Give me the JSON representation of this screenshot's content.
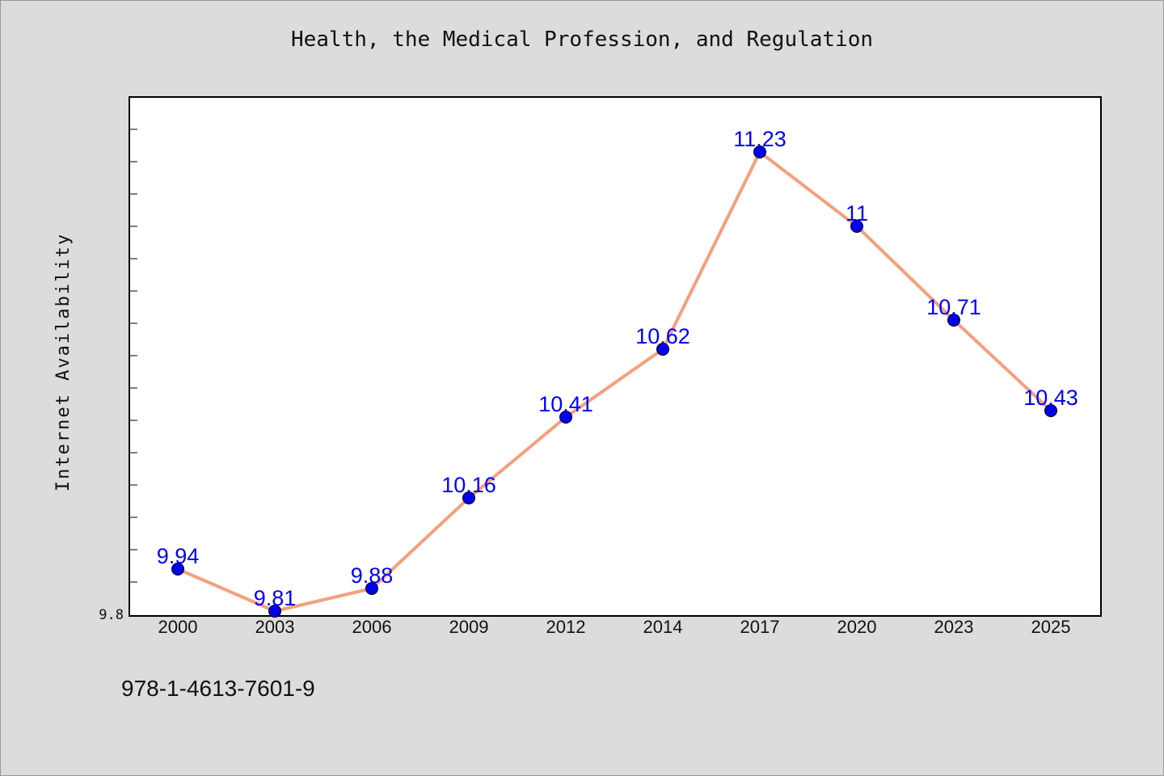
{
  "title": "Health, the Medical Profession, and Regulation",
  "footnote": "978-1-4613-7601-9",
  "colors": {
    "background": "#dcdcdc",
    "plot_background": "#ffffff",
    "line": "#f4a07c",
    "marker": "#0000ee",
    "label": "#0000ff"
  },
  "chart_data": {
    "type": "line",
    "title": "Health, the Medical Profession, and Regulation",
    "xlabel": "",
    "ylabel": "Internet Availability",
    "categories": [
      "2000",
      "2003",
      "2006",
      "2009",
      "2012",
      "2014",
      "2017",
      "2020",
      "2023",
      "2025"
    ],
    "series": [
      {
        "values": [
          9.94,
          9.81,
          9.88,
          10.16,
          10.41,
          10.62,
          11.23,
          11,
          10.71,
          10.43
        ]
      }
    ],
    "data_labels": [
      "9.94",
      "9.81",
      "9.88",
      "10.16",
      "10.41",
      "10.62",
      "11.23",
      "11",
      "10.71",
      "10.43"
    ],
    "ytick_labels": [
      "9.8"
    ],
    "ylim": [
      9.8,
      11.4
    ],
    "grid": false,
    "legend": "none"
  }
}
